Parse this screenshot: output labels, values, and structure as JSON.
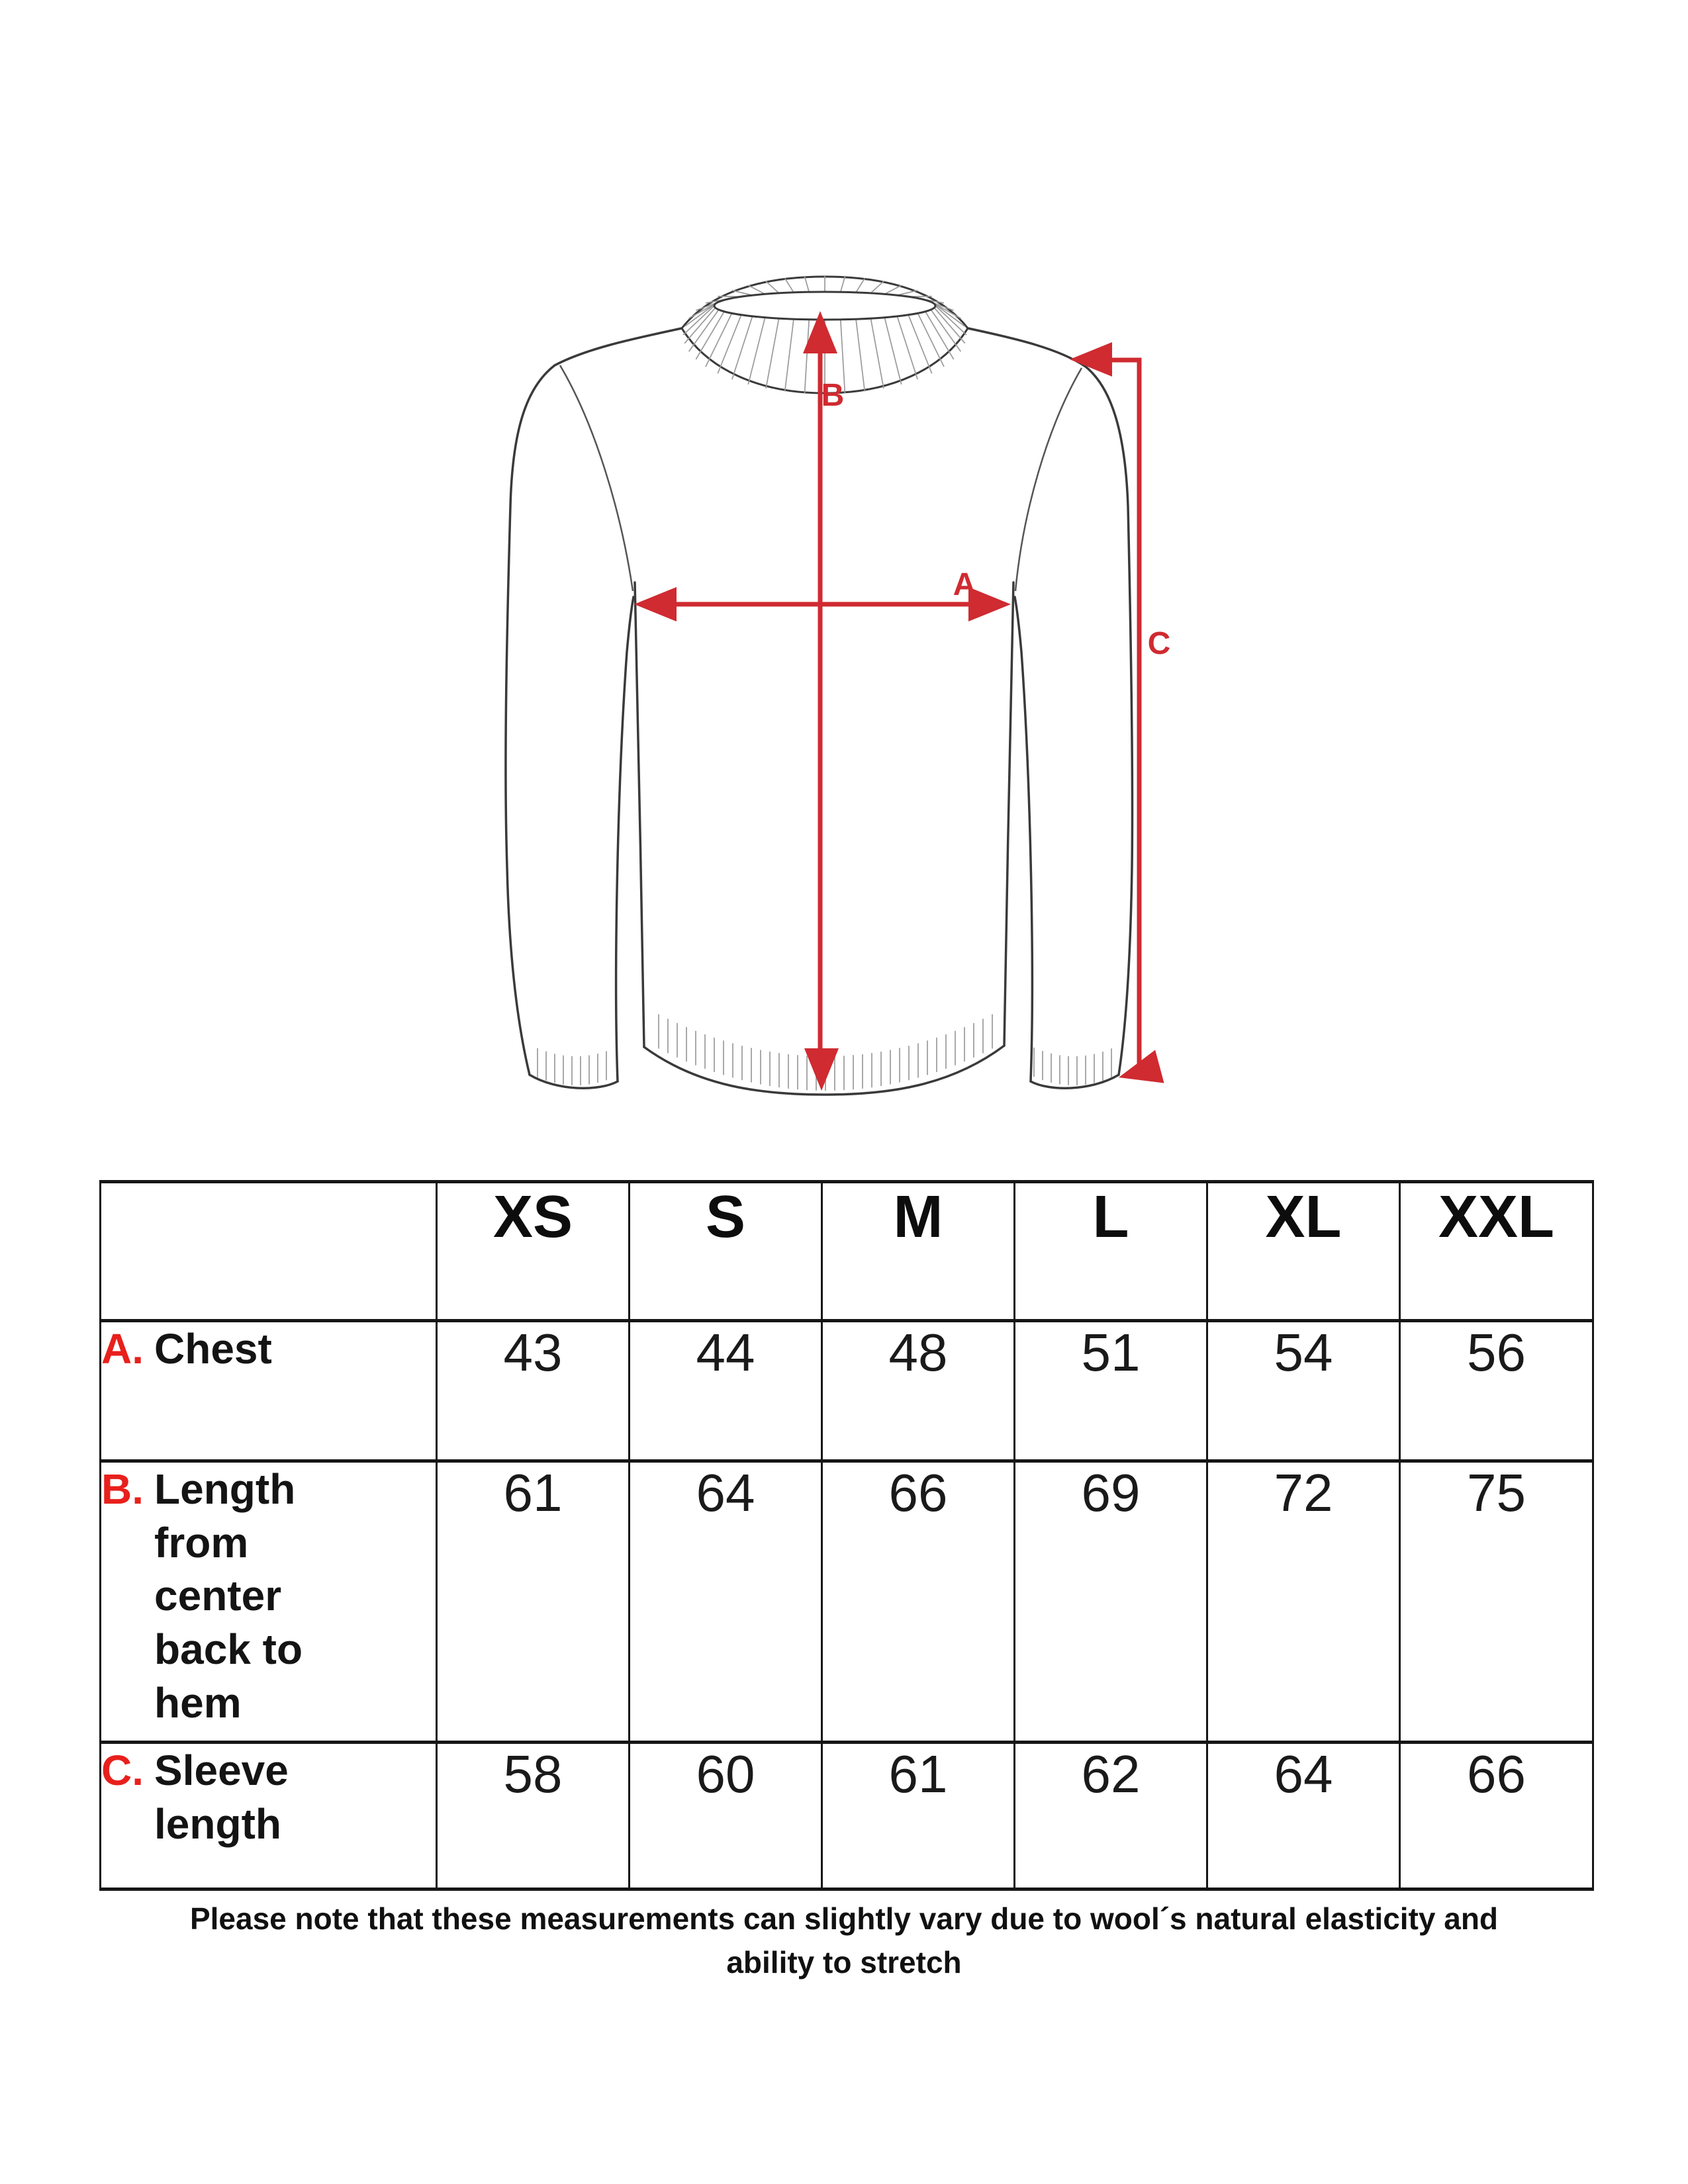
{
  "diagram": {
    "description": "crew-neck sweater line drawing with measurement arrows",
    "labels": {
      "a": "A",
      "b": "B",
      "c": "C"
    },
    "colors": {
      "arrow": "#cf2b31",
      "outline": "#3a3a3a",
      "seam": "#555555",
      "rib": "#9a9a9a"
    }
  },
  "table": {
    "columns": [
      "XS",
      "S",
      "M",
      "L",
      "XL",
      "XXL"
    ],
    "rows": [
      {
        "letter": "A.",
        "label": "Chest",
        "values": [
          "43",
          "44",
          "48",
          "51",
          "54",
          "56"
        ]
      },
      {
        "letter": "B.",
        "label": "Length from center back to hem",
        "values": [
          "61",
          "64",
          "66",
          "69",
          "72",
          "75"
        ]
      },
      {
        "letter": "C.",
        "label": "Sleeve length",
        "values": [
          "58",
          "60",
          "61",
          "62",
          "64",
          "66"
        ]
      }
    ],
    "letter_color": "#e8201c"
  },
  "note": {
    "line1": "Please note that these measurements can slightly vary due to wool´s natural elasticity and",
    "line2": "ability to stretch"
  }
}
